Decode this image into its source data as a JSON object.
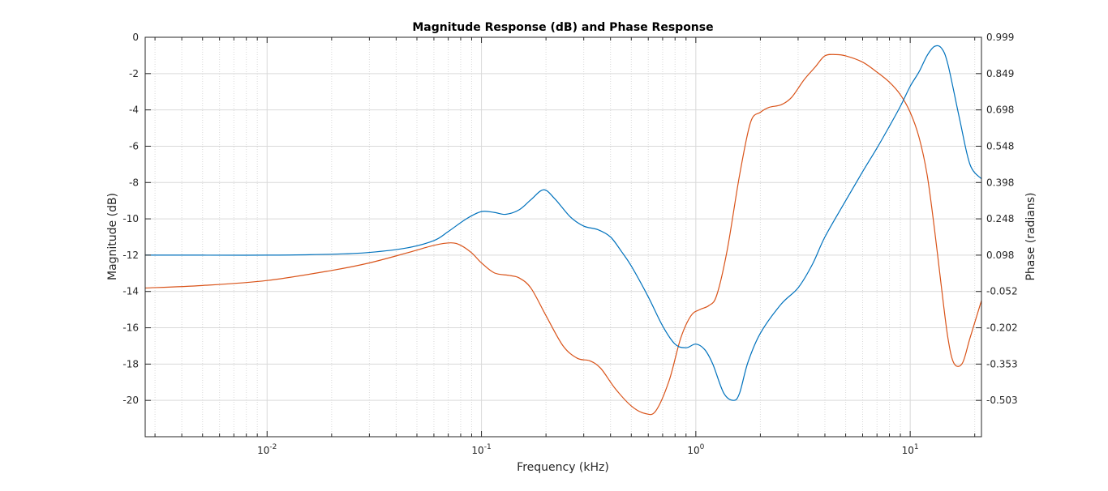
{
  "chart_data": {
    "type": "line",
    "title": "Magnitude Response (dB) and Phase Response",
    "xlabel": "Frequency (kHz)",
    "ylabel": "Magnitude (dB)",
    "ylabel_right": "Phase (radians)",
    "xscale": "log",
    "xlim": [
      0.0027,
      21.5
    ],
    "ylim": [
      -22,
      0
    ],
    "ylim_right": [
      -0.5925,
      0.999
    ],
    "grid": true,
    "minor_grid": true,
    "x_ticks": [
      {
        "base": "10",
        "exp": "-2",
        "value": 0.01
      },
      {
        "base": "10",
        "exp": "-1",
        "value": 0.1
      },
      {
        "base": "10",
        "exp": "0",
        "value": 1
      },
      {
        "base": "10",
        "exp": "1",
        "value": 10
      }
    ],
    "y_ticks": [
      "0",
      "-2",
      "-4",
      "-6",
      "-8",
      "-10",
      "-12",
      "-14",
      "-16",
      "-18",
      "-20"
    ],
    "y_ticks_right": [
      "0.999",
      "0.849",
      "0.698",
      "0.548",
      "0.398",
      "0.248",
      "0.098",
      "-0.052",
      "-0.202",
      "-0.353",
      "-0.503"
    ],
    "colors": {
      "magnitude": "#0072bd",
      "phase": "#d95319",
      "grid": "#d9d9d9",
      "axis": "#262626"
    },
    "series": [
      {
        "axis": "left",
        "x": [
          0.0027,
          0.005,
          0.01,
          0.02,
          0.03,
          0.045,
          0.06,
          0.07,
          0.085,
          0.1,
          0.115,
          0.13,
          0.15,
          0.17,
          0.195,
          0.22,
          0.26,
          0.3,
          0.35,
          0.4,
          0.45,
          0.5,
          0.6,
          0.7,
          0.8,
          0.9,
          1.0,
          1.1,
          1.2,
          1.35,
          1.5,
          1.6,
          1.75,
          2.0,
          2.5,
          3.0,
          3.5,
          4.0,
          5.0,
          6.0,
          7.0,
          8.0,
          9.0,
          10.0,
          11.0,
          12.0,
          13.0,
          14.0,
          15.0,
          17.0,
          19.0,
          21.5
        ],
        "values": [
          -12.0,
          -12.0,
          -12.0,
          -11.95,
          -11.85,
          -11.6,
          -11.2,
          -10.7,
          -10.0,
          -9.6,
          -9.65,
          -9.75,
          -9.5,
          -8.95,
          -8.4,
          -8.9,
          -9.9,
          -10.4,
          -10.6,
          -11.0,
          -11.8,
          -12.6,
          -14.3,
          -15.9,
          -16.9,
          -17.1,
          -16.9,
          -17.2,
          -18.0,
          -19.6,
          -20.0,
          -19.6,
          -17.9,
          -16.3,
          -14.7,
          -13.8,
          -12.5,
          -11.0,
          -9.0,
          -7.4,
          -6.1,
          -4.9,
          -3.8,
          -2.7,
          -1.9,
          -1.0,
          -0.5,
          -0.6,
          -1.5,
          -4.5,
          -7.0,
          -7.8
        ]
      },
      {
        "axis": "right",
        "x": [
          0.0027,
          0.005,
          0.01,
          0.02,
          0.03,
          0.045,
          0.06,
          0.072,
          0.08,
          0.09,
          0.1,
          0.115,
          0.135,
          0.15,
          0.17,
          0.2,
          0.24,
          0.28,
          0.32,
          0.36,
          0.42,
          0.5,
          0.58,
          0.65,
          0.75,
          0.85,
          0.95,
          1.05,
          1.15,
          1.25,
          1.4,
          1.6,
          1.8,
          2.0,
          2.2,
          2.5,
          2.8,
          3.2,
          3.6,
          4.0,
          4.5,
          5.0,
          6.0,
          7.0,
          8.0,
          9.0,
          10.0,
          11.0,
          12.0,
          13.0,
          14.0,
          15.0,
          16.0,
          17.5,
          19.0,
          21.5
        ],
        "values": [
          0.0,
          0.01,
          0.03,
          0.07,
          0.1,
          0.14,
          0.17,
          0.18,
          0.17,
          0.14,
          0.1,
          0.06,
          0.05,
          0.04,
          0.0,
          -0.11,
          -0.23,
          -0.28,
          -0.29,
          -0.32,
          -0.4,
          -0.47,
          -0.5,
          -0.49,
          -0.37,
          -0.2,
          -0.11,
          -0.085,
          -0.07,
          -0.03,
          0.15,
          0.45,
          0.66,
          0.7,
          0.72,
          0.73,
          0.76,
          0.83,
          0.88,
          0.925,
          0.93,
          0.925,
          0.9,
          0.86,
          0.82,
          0.77,
          0.7,
          0.6,
          0.45,
          0.23,
          0.0,
          -0.2,
          -0.3,
          -0.3,
          -0.2,
          -0.05
        ]
      }
    ]
  }
}
